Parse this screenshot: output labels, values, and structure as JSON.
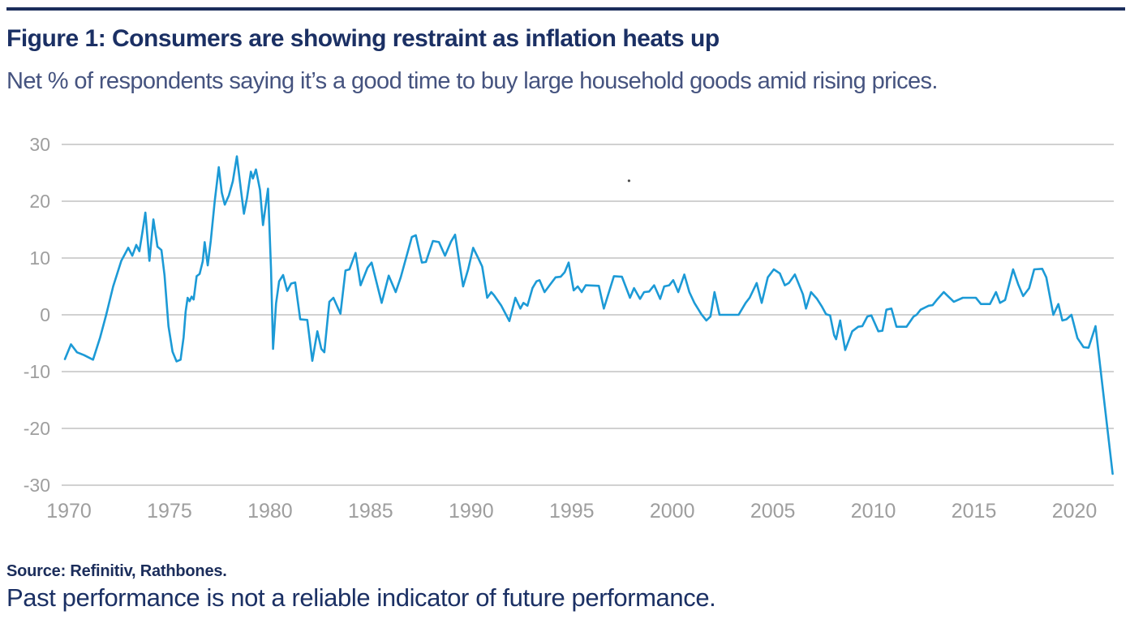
{
  "header": {
    "title": "Figure 1: Consumers are showing restraint as inflation heats up",
    "subtitle": "Net % of respondents saying it’s a good time to buy large household goods amid rising prices."
  },
  "footer": {
    "source": "Source: Refinitiv, Rathbones.",
    "disclaimer": "Past performance is not a reliable indicator of future performance."
  },
  "colors": {
    "line": "#1C9AD6",
    "grid": "#C2C2C2",
    "axis_text": "#9E9E9E",
    "title_navy": "#1B3064",
    "subtitle_slate": "#45537F",
    "rule_navy": "#1B2D5B"
  },
  "chart_data": {
    "type": "line",
    "title": "Figure 1: Consumers are showing restraint as inflation heats up",
    "subtitle": "Net % of respondents saying it’s a good time to buy large household goods amid rising prices.",
    "xlabel": "",
    "ylabel": "",
    "xlim": [
      1969.5,
      2022.3
    ],
    "ylim": [
      -30,
      30
    ],
    "x_ticks": [
      1970,
      1975,
      1980,
      1985,
      1990,
      1995,
      2000,
      2005,
      2010,
      2015,
      2020
    ],
    "y_ticks": [
      30,
      20,
      10,
      0,
      -10,
      -20,
      -30
    ],
    "grid": "horizontal",
    "legend": "none",
    "annotation_dot": {
      "t": 1997.85,
      "v": 23.6
    },
    "series": [
      {
        "name": "Net % saying good time to buy large household goods",
        "points": [
          [
            1969.8,
            -7.8
          ],
          [
            1970.1,
            -5.2
          ],
          [
            1970.4,
            -6.6
          ],
          [
            1970.75,
            -7.1
          ],
          [
            1971.2,
            -7.9
          ],
          [
            1971.55,
            -4
          ],
          [
            1971.85,
            0
          ],
          [
            1972.2,
            5
          ],
          [
            1972.6,
            9.5
          ],
          [
            1972.95,
            11.8
          ],
          [
            1973.15,
            10.4
          ],
          [
            1973.35,
            12.3
          ],
          [
            1973.5,
            11.2
          ],
          [
            1973.65,
            14.5
          ],
          [
            1973.8,
            18
          ],
          [
            1974,
            9.5
          ],
          [
            1974.2,
            16.8
          ],
          [
            1974.4,
            12
          ],
          [
            1974.6,
            11.4
          ],
          [
            1974.75,
            7
          ],
          [
            1974.95,
            -2
          ],
          [
            1975.15,
            -6.5
          ],
          [
            1975.35,
            -8.2
          ],
          [
            1975.55,
            -7.9
          ],
          [
            1975.7,
            -4
          ],
          [
            1975.8,
            0.5
          ],
          [
            1975.9,
            3
          ],
          [
            1976,
            2.4
          ],
          [
            1976.1,
            3.2
          ],
          [
            1976.2,
            2.7
          ],
          [
            1976.35,
            6.8
          ],
          [
            1976.5,
            7.2
          ],
          [
            1976.65,
            9.4
          ],
          [
            1976.75,
            12.8
          ],
          [
            1976.9,
            8.7
          ],
          [
            1977.05,
            13
          ],
          [
            1977.25,
            20
          ],
          [
            1977.45,
            26
          ],
          [
            1977.6,
            21.5
          ],
          [
            1977.75,
            19.4
          ],
          [
            1977.95,
            21
          ],
          [
            1978.15,
            23.5
          ],
          [
            1978.35,
            27.9
          ],
          [
            1978.55,
            22
          ],
          [
            1978.7,
            17.8
          ],
          [
            1978.85,
            20.5
          ],
          [
            1979.05,
            25.2
          ],
          [
            1979.15,
            24
          ],
          [
            1979.3,
            25.6
          ],
          [
            1979.5,
            22
          ],
          [
            1979.65,
            15.8
          ],
          [
            1979.9,
            22.2
          ],
          [
            1980.05,
            8
          ],
          [
            1980.15,
            -6
          ],
          [
            1980.3,
            2
          ],
          [
            1980.45,
            5.9
          ],
          [
            1980.65,
            7
          ],
          [
            1980.85,
            4.2
          ],
          [
            1981.05,
            5.5
          ],
          [
            1981.25,
            5.7
          ],
          [
            1981.5,
            -0.8
          ],
          [
            1981.85,
            -0.9
          ],
          [
            1982.1,
            -8.1
          ],
          [
            1982.35,
            -2.9
          ],
          [
            1982.55,
            -6
          ],
          [
            1982.7,
            -6.6
          ],
          [
            1982.95,
            2.3
          ],
          [
            1983.15,
            3
          ],
          [
            1983.5,
            0.2
          ],
          [
            1983.75,
            7.8
          ],
          [
            1983.95,
            8
          ],
          [
            1984.25,
            10.9
          ],
          [
            1984.5,
            5.2
          ],
          [
            1984.85,
            8.3
          ],
          [
            1985.05,
            9.2
          ],
          [
            1985.55,
            2.1
          ],
          [
            1985.9,
            6.9
          ],
          [
            1986.25,
            4
          ],
          [
            1986.5,
            6.6
          ],
          [
            1987.05,
            13.7
          ],
          [
            1987.25,
            14
          ],
          [
            1987.55,
            9.2
          ],
          [
            1987.75,
            9.3
          ],
          [
            1988.1,
            13
          ],
          [
            1988.4,
            12.8
          ],
          [
            1988.7,
            10.4
          ],
          [
            1989,
            12.9
          ],
          [
            1989.2,
            14.1
          ],
          [
            1989.6,
            5
          ],
          [
            1989.85,
            8
          ],
          [
            1990.1,
            11.8
          ],
          [
            1990.35,
            10
          ],
          [
            1990.55,
            8.5
          ],
          [
            1990.8,
            3
          ],
          [
            1991,
            4
          ],
          [
            1991.15,
            3.4
          ],
          [
            1991.5,
            1.6
          ],
          [
            1991.9,
            -1.1
          ],
          [
            1992.2,
            3
          ],
          [
            1992.45,
            1.1
          ],
          [
            1992.6,
            2.1
          ],
          [
            1992.8,
            1.6
          ],
          [
            1993.05,
            4.7
          ],
          [
            1993.25,
            5.9
          ],
          [
            1993.4,
            6.1
          ],
          [
            1993.65,
            4
          ],
          [
            1993.9,
            5.2
          ],
          [
            1994.2,
            6.6
          ],
          [
            1994.45,
            6.7
          ],
          [
            1994.65,
            7.5
          ],
          [
            1994.85,
            9.2
          ],
          [
            1995.1,
            4.3
          ],
          [
            1995.3,
            5
          ],
          [
            1995.5,
            4
          ],
          [
            1995.7,
            5.2
          ],
          [
            1996.35,
            5.1
          ],
          [
            1996.6,
            1.1
          ],
          [
            1997.1,
            6.8
          ],
          [
            1997.5,
            6.7
          ],
          [
            1997.9,
            3
          ],
          [
            1998.1,
            4.7
          ],
          [
            1998.4,
            2.8
          ],
          [
            1998.6,
            4
          ],
          [
            1998.85,
            4.1
          ],
          [
            1999.1,
            5.2
          ],
          [
            1999.4,
            2.8
          ],
          [
            1999.6,
            5
          ],
          [
            1999.85,
            5.2
          ],
          [
            2000.05,
            6.1
          ],
          [
            2000.3,
            4
          ],
          [
            2000.6,
            7.1
          ],
          [
            2000.85,
            4
          ],
          [
            2001.1,
            2.1
          ],
          [
            2001.45,
            0.1
          ],
          [
            2001.7,
            -1
          ],
          [
            2001.9,
            -0.3
          ],
          [
            2002.1,
            4
          ],
          [
            2002.35,
            0
          ],
          [
            2003.3,
            0
          ],
          [
            2003.65,
            2.1
          ],
          [
            2003.85,
            3
          ],
          [
            2004.2,
            5.6
          ],
          [
            2004.45,
            2.1
          ],
          [
            2004.75,
            6.6
          ],
          [
            2005.05,
            8
          ],
          [
            2005.35,
            7.3
          ],
          [
            2005.6,
            5.2
          ],
          [
            2005.8,
            5.6
          ],
          [
            2006.1,
            7.1
          ],
          [
            2006.5,
            3.6
          ],
          [
            2006.65,
            1.1
          ],
          [
            2006.9,
            4
          ],
          [
            2007.2,
            2.8
          ],
          [
            2007.45,
            1.4
          ],
          [
            2007.65,
            0.1
          ],
          [
            2007.85,
            -0.1
          ],
          [
            2008.05,
            -3.6
          ],
          [
            2008.15,
            -4.3
          ],
          [
            2008.35,
            -1
          ],
          [
            2008.6,
            -6.2
          ],
          [
            2008.95,
            -2.9
          ],
          [
            2009.25,
            -2.1
          ],
          [
            2009.45,
            -2
          ],
          [
            2009.7,
            -0.3
          ],
          [
            2009.9,
            -0.1
          ],
          [
            2010.25,
            -2.9
          ],
          [
            2010.45,
            -2.8
          ],
          [
            2010.65,
            0.9
          ],
          [
            2010.9,
            1.1
          ],
          [
            2011.15,
            -2.1
          ],
          [
            2011.65,
            -2.1
          ],
          [
            2012,
            -0.3
          ],
          [
            2012.15,
            0
          ],
          [
            2012.35,
            0.9
          ],
          [
            2012.75,
            1.6
          ],
          [
            2012.95,
            1.7
          ],
          [
            2013.15,
            2.6
          ],
          [
            2013.5,
            4
          ],
          [
            2014,
            2.3
          ],
          [
            2014.45,
            3
          ],
          [
            2015.1,
            3
          ],
          [
            2015.35,
            1.9
          ],
          [
            2015.8,
            1.9
          ],
          [
            2016.1,
            4
          ],
          [
            2016.3,
            2.1
          ],
          [
            2016.55,
            2.6
          ],
          [
            2016.95,
            8
          ],
          [
            2017.2,
            5.4
          ],
          [
            2017.45,
            3.3
          ],
          [
            2017.75,
            4.7
          ],
          [
            2018,
            8
          ],
          [
            2018.4,
            8.1
          ],
          [
            2018.6,
            6.6
          ],
          [
            2018.95,
            0
          ],
          [
            2019.2,
            1.9
          ],
          [
            2019.4,
            -1
          ],
          [
            2019.6,
            -0.8
          ],
          [
            2019.85,
            0
          ],
          [
            2020.15,
            -4.1
          ],
          [
            2020.45,
            -5.7
          ],
          [
            2020.7,
            -5.8
          ],
          [
            2021.05,
            -2
          ],
          [
            2021.9,
            -28
          ]
        ]
      }
    ]
  }
}
